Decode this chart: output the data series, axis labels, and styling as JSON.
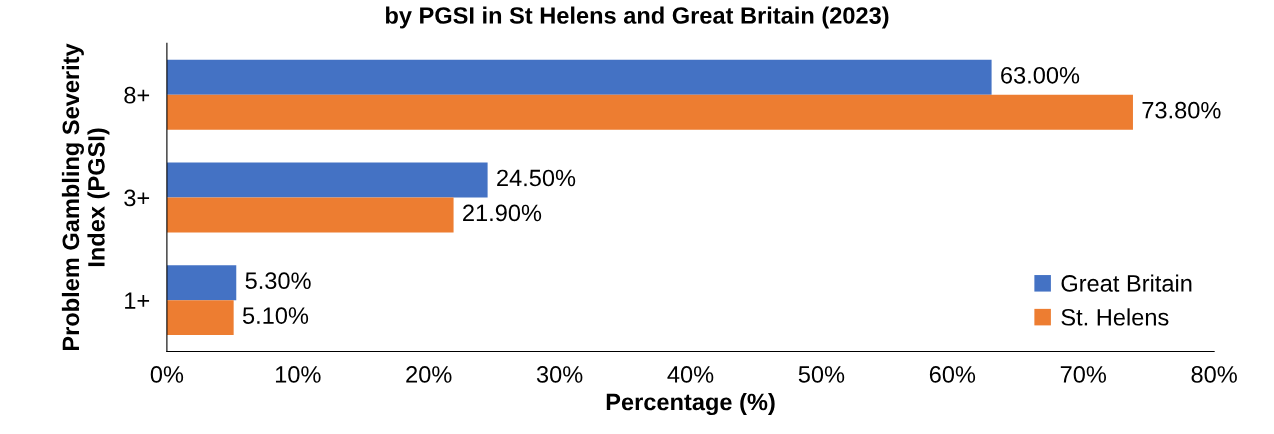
{
  "chart_data": {
    "type": "bar",
    "orientation": "horizontal",
    "title": "by PGSI in St Helens and Great Britain (2023)",
    "xlabel": "Percentage (%)",
    "ylabel": "Problem Gambling Severity\nIndex (PGSI)",
    "categories": [
      "8+",
      "3+",
      "1+"
    ],
    "series": [
      {
        "name": "Great Britain",
        "color": "#4472c4",
        "values": [
          63.0,
          24.5,
          5.3
        ],
        "value_labels": [
          "63.00%",
          "24.50%",
          "5.30%"
        ]
      },
      {
        "name": "St. Helens",
        "color": "#ed7d31",
        "values": [
          73.8,
          21.9,
          5.1
        ],
        "value_labels": [
          "73.80%",
          "21.90%",
          "5.10%"
        ]
      }
    ],
    "xlim": [
      0,
      80
    ],
    "xticks": [
      {
        "value": 0,
        "label": "0%"
      },
      {
        "value": 10,
        "label": "10%"
      },
      {
        "value": 20,
        "label": "20%"
      },
      {
        "value": 30,
        "label": "30%"
      },
      {
        "value": 40,
        "label": "40%"
      },
      {
        "value": 50,
        "label": "50%"
      },
      {
        "value": 60,
        "label": "60%"
      },
      {
        "value": 70,
        "label": "70%"
      },
      {
        "value": 80,
        "label": "80%"
      }
    ],
    "legend": "bottom right",
    "grid": false
  }
}
